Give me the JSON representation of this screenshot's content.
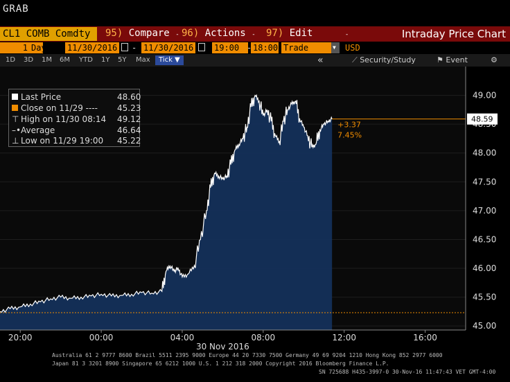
{
  "window": {
    "title": "GRAB"
  },
  "command_bar": {
    "security": "CL1 COMB Comdty",
    "menus": [
      {
        "num": "95)",
        "label": "Compare"
      },
      {
        "num": "96)",
        "label": "Actions"
      },
      {
        "num": "97)",
        "label": "Edit"
      }
    ],
    "chart_name": "Intraday Price Chart"
  },
  "params": {
    "period_count": "1",
    "period_unit": "Day(s)",
    "start_date": "11/30/2016",
    "end_date": "11/30/2016",
    "start_time": "19:00",
    "end_time": "18:00",
    "event": "Trade",
    "currency": "USD"
  },
  "range_buttons": [
    "1D",
    "3D",
    "1M",
    "6M",
    "YTD",
    "1Y",
    "5Y",
    "Max"
  ],
  "tick_button": "Tick ▼",
  "toolbar": {
    "collapse": "«",
    "security_study": "Security/Study",
    "event": "Event",
    "settings": "⚙"
  },
  "legend": {
    "items": [
      {
        "label": "Last Price",
        "value": "48.60",
        "color": "#ffffff"
      },
      {
        "label": "Close on 11/29 ----",
        "value": "45.23",
        "color": "#f08c00"
      },
      {
        "label": "High on 11/30 08:14",
        "value": "49.12",
        "color": "#cccccc"
      },
      {
        "label": "Average",
        "value": "46.64",
        "color": "#cccccc"
      },
      {
        "label": "Low on 11/29 19:00",
        "value": "45.22",
        "color": "#cccccc"
      }
    ]
  },
  "annotations": {
    "change_abs": "+3.37",
    "change_pct": "7.45%",
    "last_tag": "48.59"
  },
  "chart_data": {
    "type": "area",
    "x_ticks": [
      "20:00",
      "00:00",
      "04:00",
      "08:00",
      "12:00",
      "16:00"
    ],
    "x_tick_hours": [
      20,
      24,
      28,
      32,
      36,
      40
    ],
    "date_label": "30 Nov 2016",
    "xlim_hours": [
      19,
      42
    ],
    "ylim": [
      44.93,
      49.5
    ],
    "y_ticks": [
      45.0,
      45.5,
      46.0,
      46.5,
      47.0,
      47.5,
      48.0,
      48.5,
      49.0
    ],
    "reference_close": 45.23,
    "last_price": 48.59,
    "series": [
      {
        "x": [
          19.0,
          19.5,
          20.0,
          20.5,
          21.0,
          21.5,
          22.0,
          22.5,
          23.0,
          23.5,
          24.0,
          24.5,
          25.0,
          25.5,
          26.0,
          26.5,
          27.0,
          27.2,
          27.4,
          27.6,
          27.8,
          28.0,
          28.3,
          28.6,
          28.9,
          29.2,
          29.4,
          29.6,
          29.8,
          30.0,
          30.2,
          30.4,
          30.6,
          30.8,
          31.0,
          31.2,
          31.4,
          31.6,
          31.8,
          32.0,
          32.2,
          32.4,
          32.6,
          32.8,
          33.0,
          33.2,
          33.4,
          33.6,
          33.8,
          34.0,
          34.2,
          34.4,
          34.6,
          34.8,
          35.0,
          35.2,
          35.4
        ],
        "values": [
          45.25,
          45.3,
          45.33,
          45.38,
          45.42,
          45.47,
          45.5,
          45.48,
          45.5,
          45.52,
          45.55,
          45.52,
          45.53,
          45.55,
          45.58,
          45.57,
          45.6,
          45.95,
          46.05,
          45.95,
          46.0,
          45.85,
          45.9,
          46.05,
          46.5,
          47.0,
          47.4,
          47.65,
          47.6,
          47.55,
          47.6,
          47.8,
          48.05,
          48.15,
          48.25,
          48.45,
          48.8,
          49.0,
          48.9,
          48.65,
          48.75,
          48.55,
          48.3,
          48.2,
          48.55,
          48.75,
          48.85,
          48.9,
          48.6,
          48.45,
          48.3,
          48.1,
          48.15,
          48.4,
          48.5,
          48.55,
          48.59
        ]
      }
    ]
  },
  "footer": {
    "line1": "Australia 61 2 9777 8600 Brazil 5511 2395 9000 Europe 44 20 7330 7500 Germany 49 69 9204 1210 Hong Kong 852 2977 6000",
    "line2": "Japan 81 3 3201 8900          Singapore 65 6212 1000          U.S. 1 212 318 2000          Copyright 2016 Bloomberg Finance L.P.",
    "line3": "SN 725688 H435-3997-0 30-Nov-16 11:47:43 VET  GMT-4:00"
  }
}
